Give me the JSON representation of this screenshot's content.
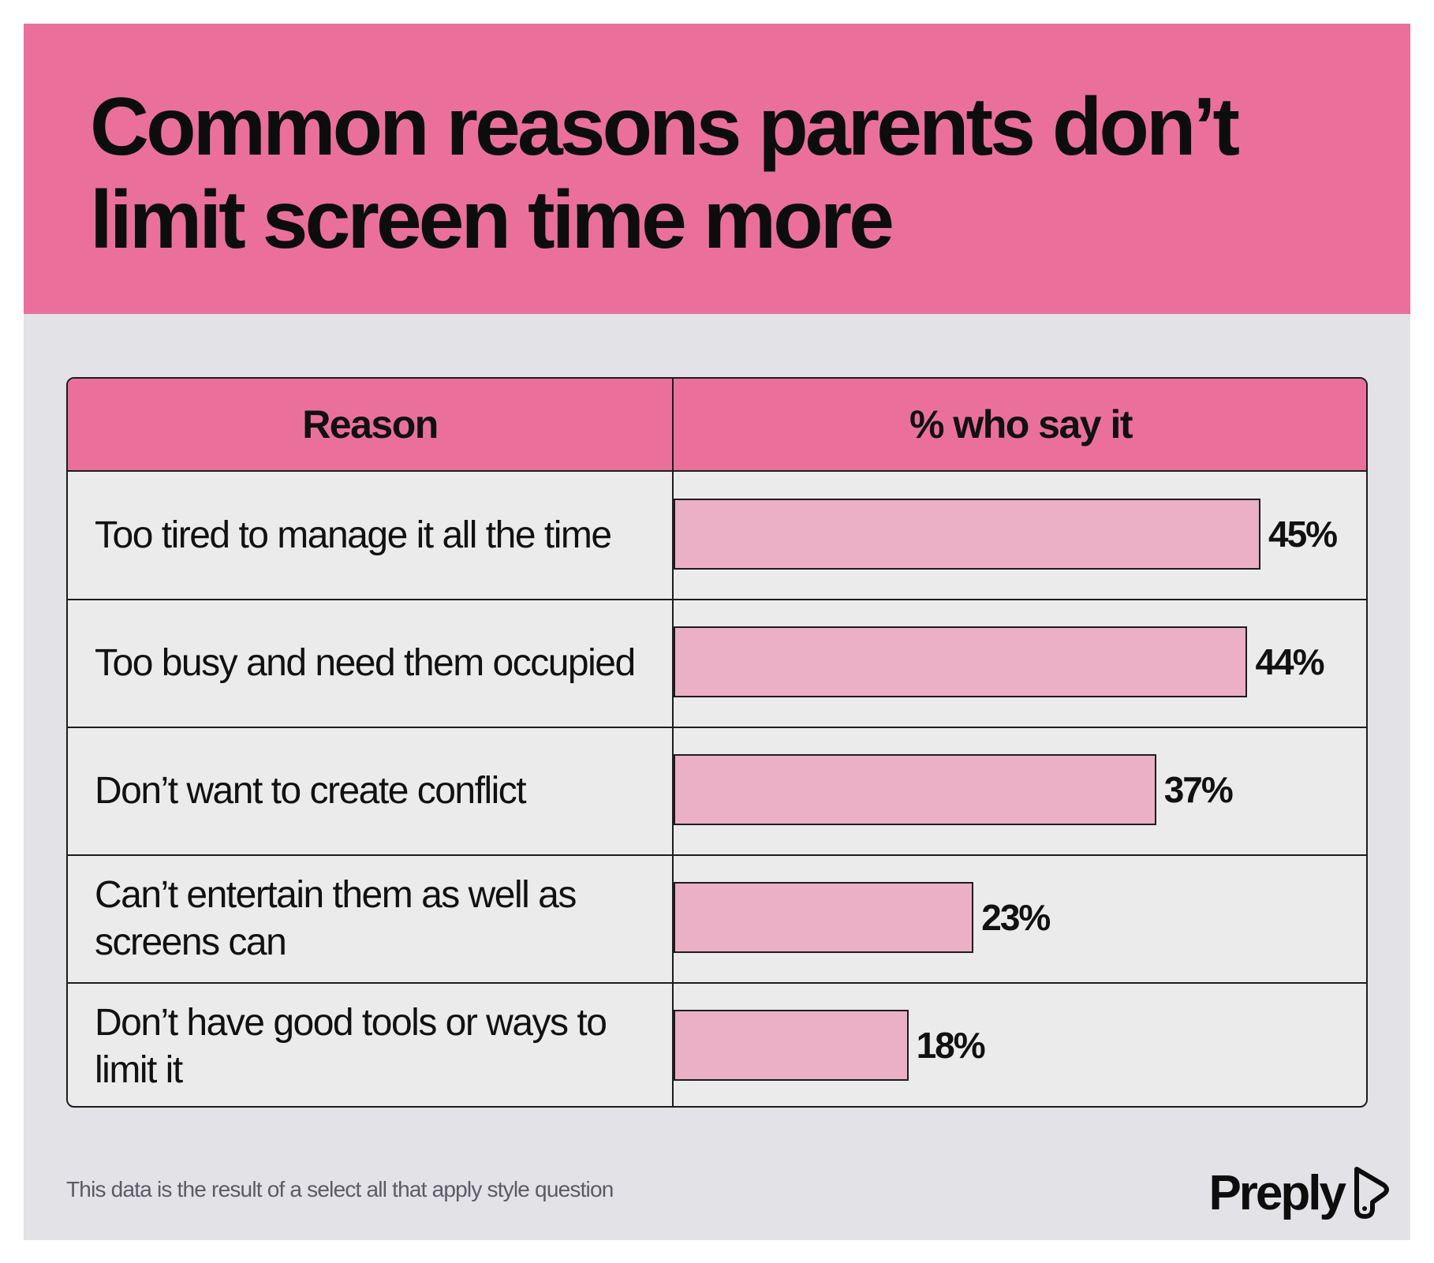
{
  "header": {
    "title_line1": "Common reasons parents don’t",
    "title_line2": "limit screen time more"
  },
  "table": {
    "col_reason": "Reason",
    "col_pct": "% who say it"
  },
  "chart_data": {
    "type": "bar",
    "orientation": "horizontal",
    "title": "Common reasons parents don’t limit screen time more",
    "xlabel": "% who say it",
    "ylabel": "Reason",
    "categories": [
      "Too tired to manage it all the time",
      "Too busy and need them occupied",
      "Don’t want to create conflict",
      "Can’t entertain them as well as screens can",
      "Don’t have good tools or ways to limit it"
    ],
    "values": [
      45,
      44,
      37,
      23,
      18
    ],
    "value_labels": [
      "45%",
      "44%",
      "37%",
      "23%",
      "18%"
    ],
    "xlim": [
      0,
      50
    ],
    "grid": false,
    "legend": "none",
    "colors": {
      "bar": "#ebb0c6",
      "header": "#ea709b",
      "background": "#e3e2e6"
    }
  },
  "footer": {
    "note": "This data is the result of a select all that apply style question",
    "brand": "Preply",
    "brand_icon": "preply-logo-icon"
  }
}
